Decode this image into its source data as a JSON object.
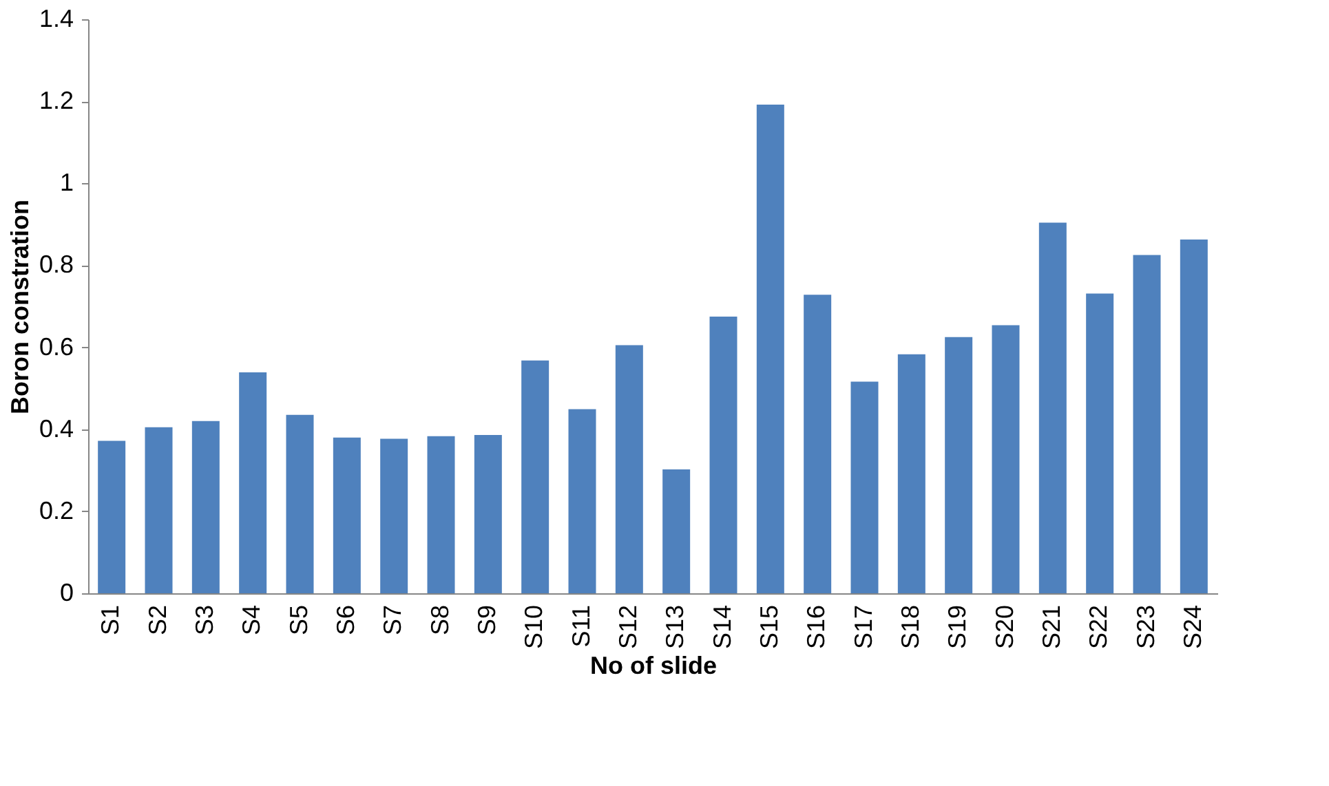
{
  "chart_data": {
    "type": "bar",
    "xlabel": "No of slide",
    "ylabel": "Boron constration",
    "categories": [
      "S1",
      "S2",
      "S3",
      "S4",
      "S5",
      "S6",
      "S7",
      "S8",
      "S9",
      "S10",
      "S11",
      "S12",
      "S13",
      "S14",
      "S15",
      "S16",
      "S17",
      "S18",
      "S19",
      "S20",
      "S21",
      "S22",
      "S23",
      "S24"
    ],
    "values": [
      0.372,
      0.405,
      0.42,
      0.539,
      0.435,
      0.38,
      0.377,
      0.383,
      0.386,
      0.568,
      0.449,
      0.605,
      0.302,
      0.675,
      1.192,
      0.728,
      0.516,
      0.583,
      0.625,
      0.654,
      0.904,
      0.731,
      0.825,
      0.863
    ],
    "color": "#4f81bd",
    "ylim": [
      0,
      1.4
    ],
    "yticks": [
      0,
      0.2,
      0.4,
      0.6,
      0.8,
      1,
      1.2,
      1.4
    ],
    "grid": false
  }
}
